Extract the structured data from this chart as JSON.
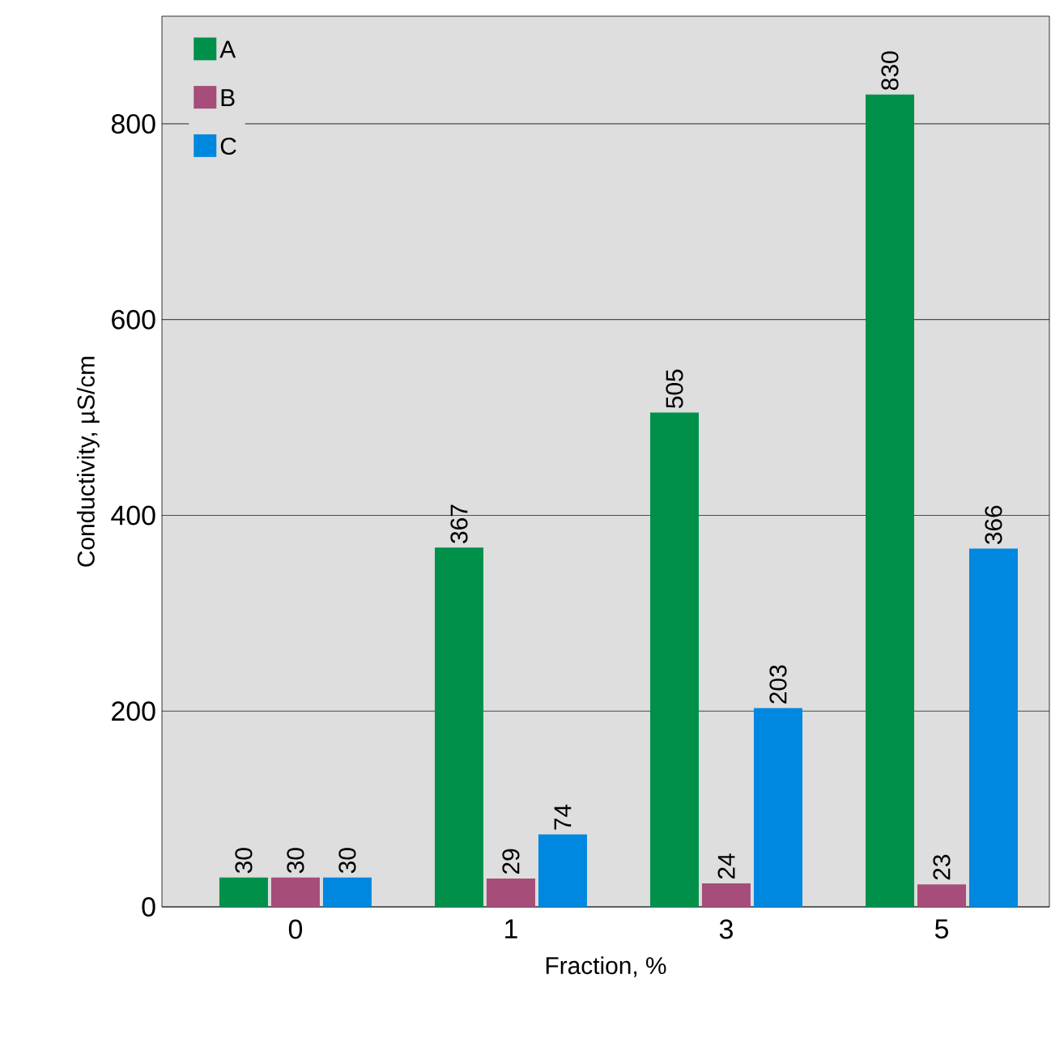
{
  "chart_data": {
    "type": "bar",
    "xlabel": "Fraction, %",
    "ylabel": "Conductivity, µS/cm",
    "categories": [
      "0",
      "1",
      "3",
      "5"
    ],
    "series": [
      {
        "name": "A",
        "color": "#00904a",
        "values": [
          30,
          367,
          505,
          830
        ]
      },
      {
        "name": "B",
        "color": "#a64d79",
        "values": [
          30,
          29,
          24,
          23
        ]
      },
      {
        "name": "C",
        "color": "#0087e0",
        "values": [
          30,
          74,
          203,
          366
        ]
      }
    ],
    "ylim": [
      0,
      910
    ],
    "yticks": [
      0,
      200,
      400,
      600,
      800
    ],
    "grid": "y",
    "legend": "top left",
    "data_labels": true
  }
}
